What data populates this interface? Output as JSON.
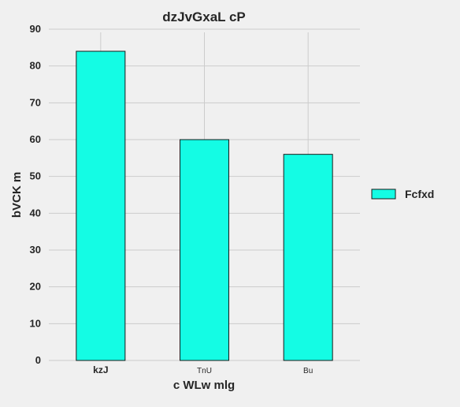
{
  "chart_data": {
    "type": "bar",
    "title": "dzJvGxaL cP",
    "xlabel": "c WLw mlg",
    "ylabel": "bVCK m",
    "categories": [
      "kzJ",
      "TnU",
      "Bu"
    ],
    "series": [
      {
        "name": "Fcfxd",
        "values": [
          84,
          60,
          56
        ]
      }
    ],
    "ylim": [
      0,
      90
    ],
    "yticks": [
      0,
      10,
      20,
      30,
      40,
      50,
      60,
      70,
      80,
      90
    ],
    "grid": true,
    "legend_position": "right",
    "colors": {
      "bar_fill": "#14fce4",
      "bar_stroke": "#1a1a1a",
      "grid": "#cccccc",
      "text": "#262626",
      "background": "#f0f0f0"
    }
  }
}
